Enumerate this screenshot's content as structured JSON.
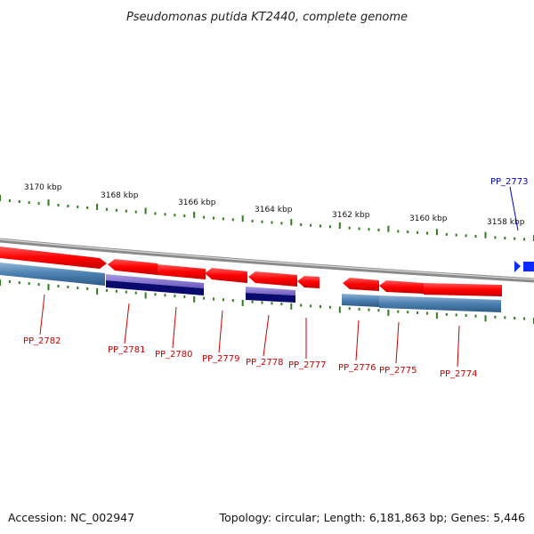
{
  "title": "Pseudomonas putida KT2440, complete genome",
  "footer": {
    "accession": "Accession: NC_002947",
    "summary": "Topology: circular; Length: 6,181,863 bp; Genes: 5,446"
  },
  "colors": {
    "forward_gene": "#ff1a1a",
    "reverse_gene": "#4a7fb0",
    "operon_light": "#7b68c8",
    "operon_dark": "#0a0a6e",
    "backbone": "#8a8a8a",
    "tick": "#2e7d1a",
    "label_red": "#cc0000",
    "label_blue": "#0000cc",
    "highlight": "#0a2aff"
  },
  "scale_labels": [
    "3170 kbp",
    "3168 kbp",
    "3166 kbp",
    "3164 kbp",
    "3162 kbp",
    "3160 kbp",
    "3158 kbp"
  ],
  "gene_labels": [
    {
      "text": "PP_2782",
      "color": "red"
    },
    {
      "text": "PP_2781",
      "color": "red"
    },
    {
      "text": "PP_2780",
      "color": "red"
    },
    {
      "text": "PP_2779",
      "color": "red"
    },
    {
      "text": "PP_2778",
      "color": "red"
    },
    {
      "text": "PP_2777",
      "color": "red"
    },
    {
      "text": "PP_2776",
      "color": "red"
    },
    {
      "text": "PP_2775",
      "color": "red"
    },
    {
      "text": "PP_2774",
      "color": "red"
    },
    {
      "text": "PP_2773",
      "color": "blue"
    }
  ]
}
